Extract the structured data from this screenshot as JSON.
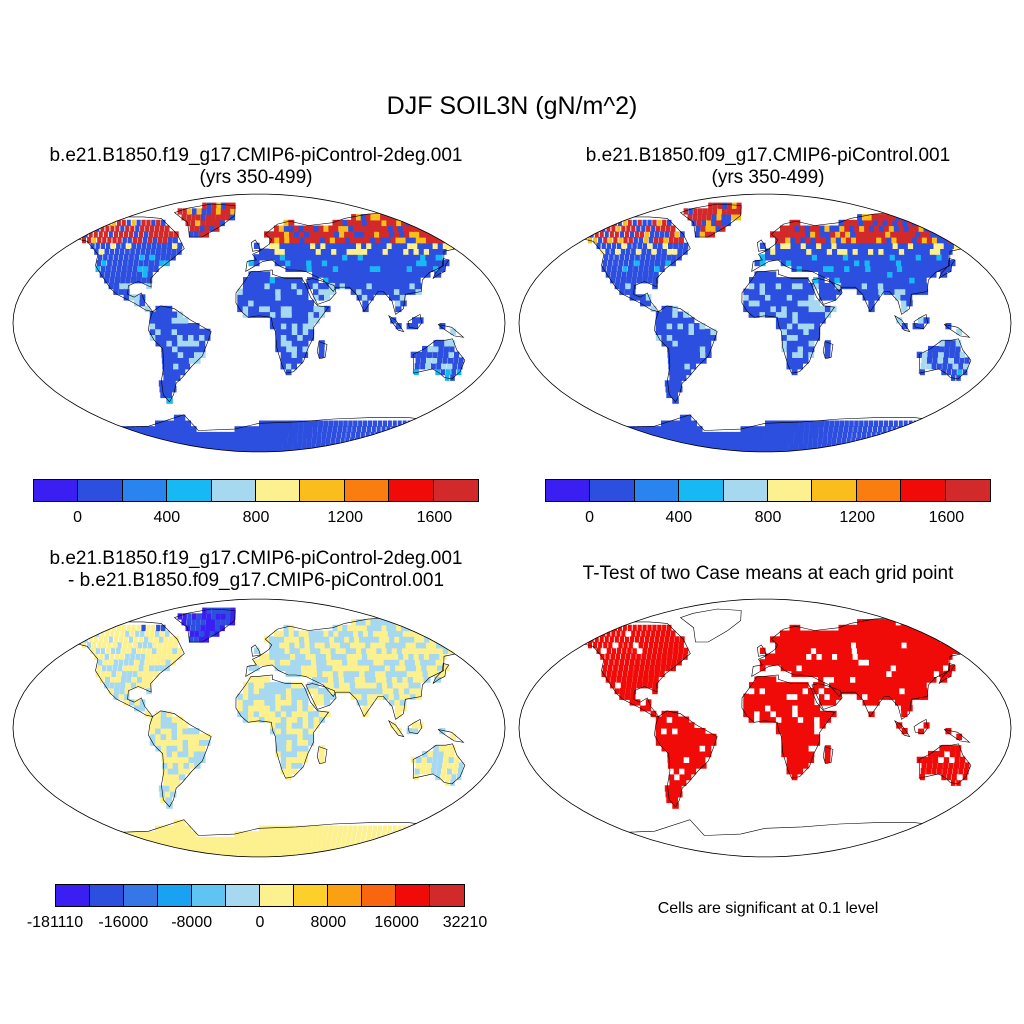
{
  "title": "DJF SOIL3N (gN/m^2)",
  "panels": {
    "p1": {
      "title_line1": "b.e21.B1850.f19_g17.CMIP6-piControl-2deg.001",
      "title_line2": "(yrs 350-499)"
    },
    "p2": {
      "title_line1": "b.e21.B1850.f09_g17.CMIP6-piControl.001",
      "title_line2": "(yrs 350-499)"
    },
    "p3": {
      "title_line1": "b.e21.B1850.f19_g17.CMIP6-piControl-2deg.001",
      "title_line2": "- b.e21.B1850.f09_g17.CMIP6-piControl.001"
    },
    "p4": {
      "title_line1": "T-Test of two Case means at each grid point"
    }
  },
  "significance_note": "Cells are significant at 0.1 level",
  "colorbars": {
    "case": {
      "colors": [
        "#3b1ff2",
        "#2d4fe0",
        "#2a84f0",
        "#17b9f5",
        "#a6d8f0",
        "#fdf08e",
        "#fbbd1b",
        "#fa7d10",
        "#f00b08",
        "#d22a2a"
      ],
      "labels": [
        "0",
        "400",
        "800",
        "1200",
        "1600"
      ]
    },
    "diff": {
      "colors": [
        "#3b1ff2",
        "#2d4fe0",
        "#3677e8",
        "#1aa2f2",
        "#5fc4f2",
        "#a6d8f0",
        "#fdf08e",
        "#fdcf2a",
        "#fb9f14",
        "#fa6510",
        "#f00b08",
        "#d22a2a"
      ],
      "labels": [
        "-181110",
        "-16000",
        "-8000",
        "0",
        "8000",
        "16000",
        "32210"
      ]
    }
  },
  "map_colors": {
    "land_low": "#2d4fe0",
    "land_light": "#a6d8f0",
    "land_mid": "#17b9f5",
    "high": "#d22a2a",
    "yellow": "#fdf08e",
    "orange": "#fbbd1b",
    "significant": "#f00b08"
  }
}
